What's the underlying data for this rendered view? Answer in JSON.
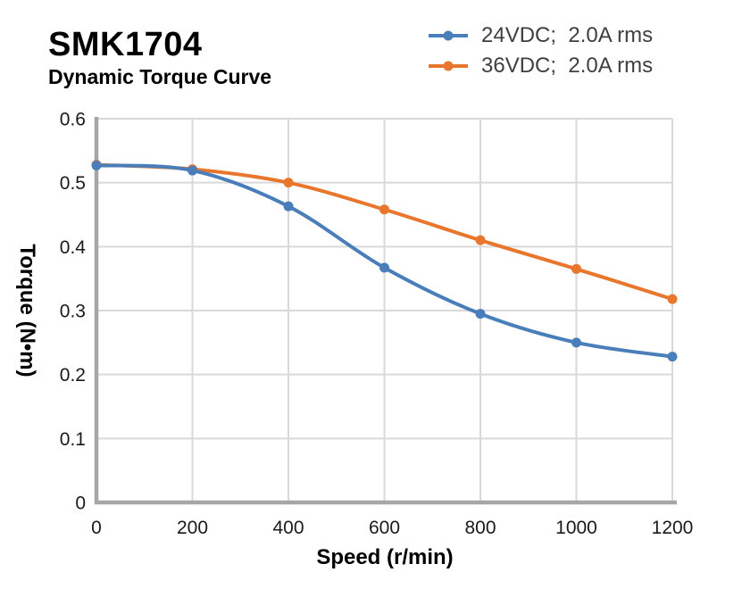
{
  "chart_data": {
    "type": "line",
    "title": "SMK1704",
    "subtitle": "Dynamic Torque Curve",
    "xlabel": "Speed (r/min)",
    "ylabel": "Torque (N•m)",
    "xlim": [
      0,
      1200
    ],
    "ylim": [
      0,
      0.6
    ],
    "grid": true,
    "legend_position": "top-right",
    "x": [
      0,
      200,
      400,
      600,
      800,
      1000,
      1200
    ],
    "series": [
      {
        "name": "24VDC;  2.0A rms",
        "color": "#4a7ebb",
        "values": [
          0.527,
          0.519,
          0.463,
          0.367,
          0.295,
          0.25,
          0.228
        ]
      },
      {
        "name": "36VDC;  2.0A rms",
        "color": "#e8762c",
        "values": [
          0.528,
          0.521,
          0.5,
          0.458,
          0.41,
          0.365,
          0.318
        ]
      }
    ],
    "xticks": {
      "values": [
        0,
        200,
        400,
        600,
        800,
        1000,
        1200
      ],
      "labels": [
        "0",
        "200",
        "400",
        "600",
        "800",
        "1000",
        "1200"
      ]
    },
    "yticks": {
      "values": [
        0,
        0.1,
        0.2,
        0.3,
        0.4,
        0.5,
        0.6
      ],
      "labels": [
        "0",
        "0.1",
        "0.2",
        "0.3",
        "0.4",
        "0.5",
        "0.6"
      ]
    }
  },
  "style": {
    "grid_color": "#d9d9d9",
    "axis_color": "#a6a6a6",
    "tick_label_color": "#1a1a1a"
  }
}
